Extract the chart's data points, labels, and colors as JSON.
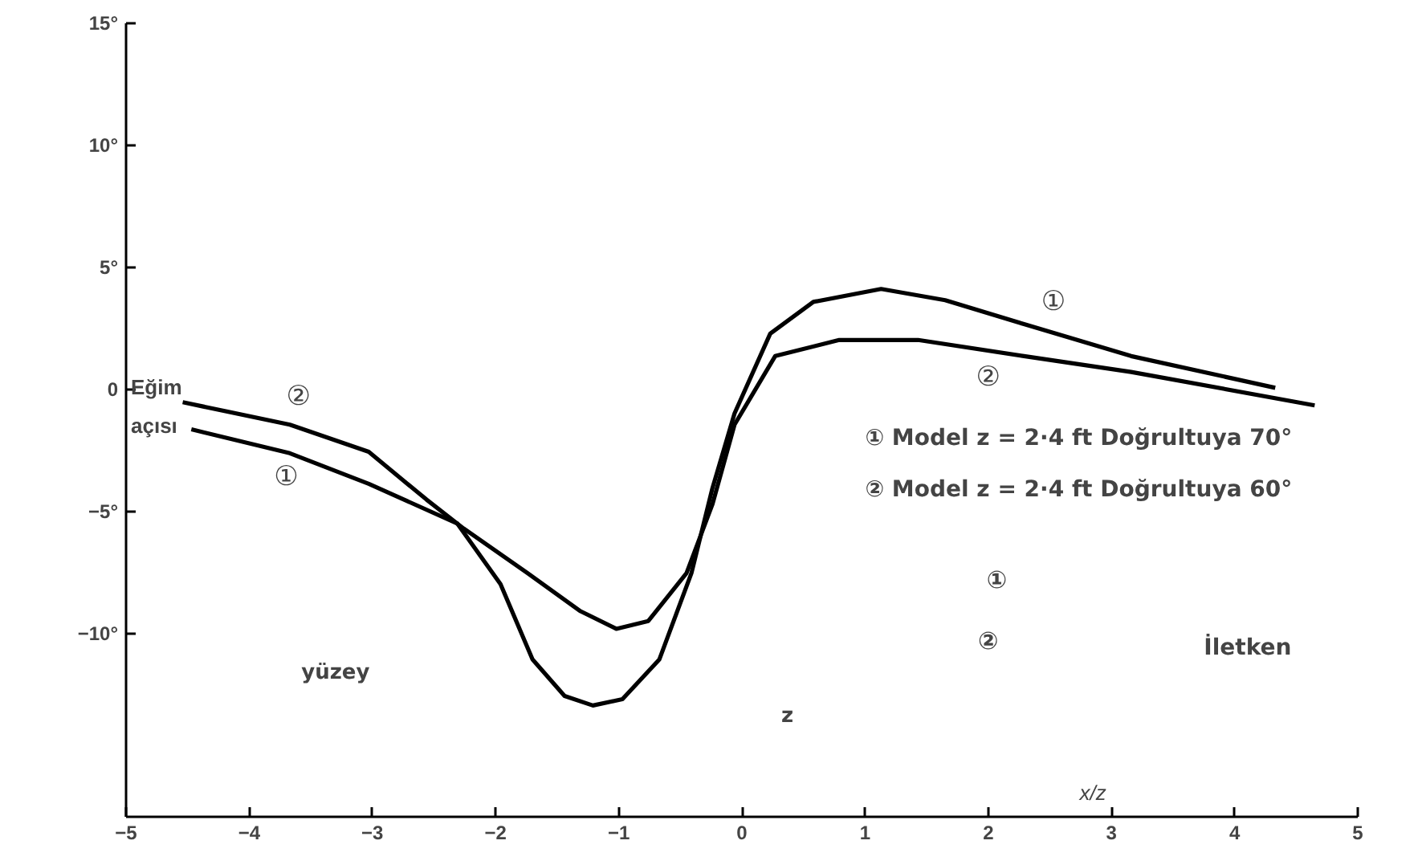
{
  "chart_data": {
    "type": "line",
    "xlabel": "x/z",
    "ylabel": "Eğim açısı",
    "xlim": [
      -5,
      5
    ],
    "ylim": [
      -17.5,
      15
    ],
    "xticks": [
      {
        "value": -5,
        "label": "−5"
      },
      {
        "value": -4,
        "label": "−4"
      },
      {
        "value": -3,
        "label": "−3"
      },
      {
        "value": -2,
        "label": "−2"
      },
      {
        "value": -1,
        "label": "−1"
      },
      0,
      1,
      2,
      3,
      4,
      5
    ],
    "yticks": [
      {
        "value": -10,
        "label": "−10°"
      },
      {
        "value": -5,
        "label": "−5°"
      },
      0,
      {
        "value": 5,
        "label": "5°"
      },
      {
        "value": 10,
        "label": "10°"
      },
      {
        "value": 15,
        "label": "15°"
      }
    ],
    "grid": false,
    "marker": "none",
    "line_style": "solid",
    "series": [
      {
        "name": "①",
        "color": "#000000",
        "x": [
          -4.47,
          -3.67,
          -3.03,
          -2.31,
          -1.96,
          -1.7,
          -1.44,
          -1.21,
          -0.97,
          -0.67,
          -0.41,
          -0.24,
          -0.06,
          0.23,
          0.58,
          1.13,
          1.65,
          2.29,
          3.16,
          4.33
        ],
        "values": [
          -1.63,
          -2.61,
          -3.86,
          -5.49,
          -7.97,
          -11.05,
          -12.55,
          -12.94,
          -12.68,
          -11.05,
          -7.52,
          -4.05,
          -0.98,
          2.29,
          3.59,
          4.12,
          3.66,
          2.68,
          1.37,
          0.07
        ]
      },
      {
        "name": "②",
        "color": "#000000",
        "x": [
          -4.54,
          -3.67,
          -3.03,
          -2.56,
          -2.26,
          -1.74,
          -1.31,
          -1.02,
          -0.76,
          -0.45,
          -0.24,
          -0.06,
          0.27,
          0.79,
          1.43,
          2.29,
          3.16,
          4.65
        ],
        "values": [
          -0.52,
          -1.44,
          -2.55,
          -4.51,
          -5.69,
          -7.52,
          -9.08,
          -9.8,
          -9.48,
          -7.52,
          -4.71,
          -1.44,
          1.37,
          2.03,
          2.03,
          1.37,
          0.72,
          -0.65
        ]
      }
    ],
    "annotations": [
      "① Model   z = 2·4 ft   Doğrultuya 70°",
      "② Model   z = 2·4 ft   Doğrultuya 60°",
      "yüzey",
      "①",
      "②",
      "İletken",
      "z"
    ]
  }
}
